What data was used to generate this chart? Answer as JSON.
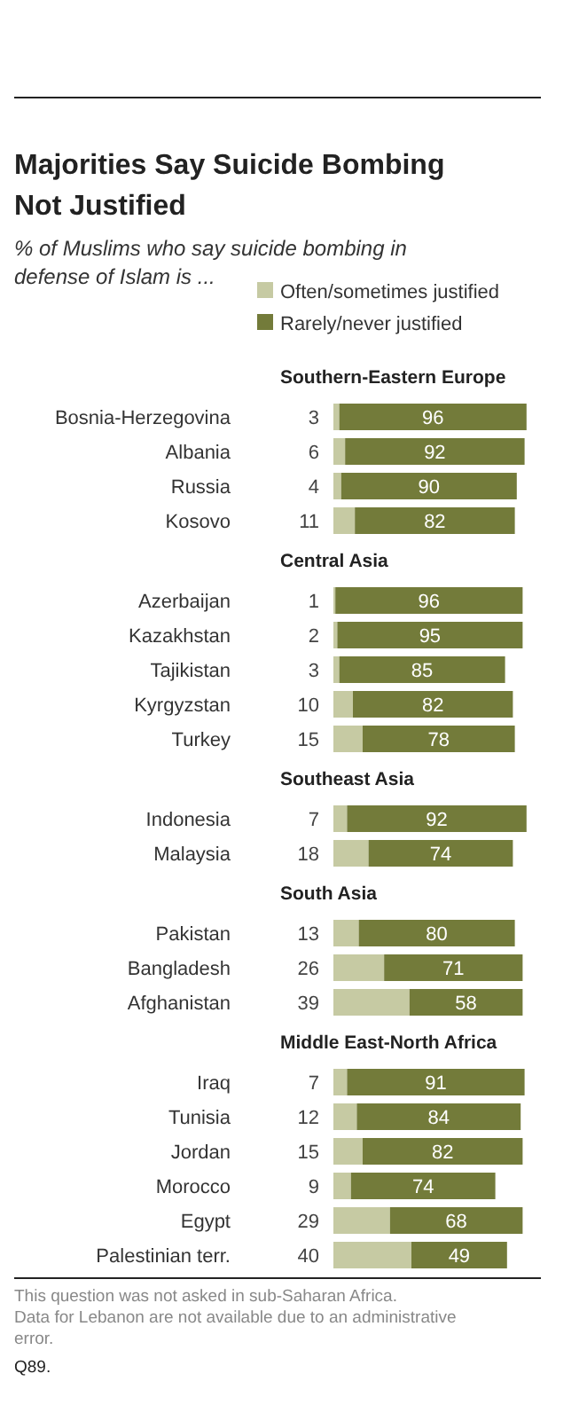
{
  "chart_data": [
    {
      "type": "other",
      "title": "Majorities Say Suicide Bombing Not Justified",
      "subtitle": "% of Muslims who say suicide bombing in defense of Islam is ..."
    },
    {
      "type": "bar",
      "orientation": "horizontal",
      "stacked": true,
      "title": "Southern-Eastern Europe",
      "legend": "top",
      "data_labels": true,
      "categories": [
        "Bosnia-Herzegovina",
        "Albania",
        "Russia",
        "Kosovo"
      ],
      "series": [
        {
          "name": "Often/sometimes justified",
          "color": "#c6caa3",
          "values": [
            3,
            6,
            4,
            11
          ]
        },
        {
          "name": "Rarely/never justified",
          "color": "#737b3a",
          "values": [
            96,
            92,
            90,
            82
          ]
        }
      ]
    },
    {
      "type": "bar",
      "orientation": "horizontal",
      "stacked": true,
      "title": "Central Asia",
      "data_labels": true,
      "categories": [
        "Azerbaijan",
        "Kazakhstan",
        "Tajikistan",
        "Kyrgyzstan",
        "Turkey"
      ],
      "series": [
        {
          "color": "#c6caa3",
          "values": [
            1,
            2,
            3,
            10,
            15
          ]
        },
        {
          "color": "#737b3a",
          "values": [
            96,
            95,
            85,
            82,
            78
          ]
        }
      ]
    },
    {
      "type": "bar",
      "orientation": "horizontal",
      "stacked": true,
      "title": "Southeast Asia",
      "data_labels": true,
      "categories": [
        "Indonesia",
        "Malaysia"
      ],
      "series": [
        {
          "color": "#c6caa3",
          "values": [
            7,
            18
          ]
        },
        {
          "color": "#737b3a",
          "values": [
            92,
            74
          ]
        }
      ]
    },
    {
      "type": "bar",
      "orientation": "horizontal",
      "stacked": true,
      "title": "South Asia",
      "data_labels": true,
      "categories": [
        "Pakistan",
        "Bangladesh",
        "Afghanistan"
      ],
      "series": [
        {
          "color": "#c6caa3",
          "values": [
            13,
            26,
            39
          ]
        },
        {
          "color": "#737b3a",
          "values": [
            80,
            71,
            58
          ]
        }
      ]
    },
    {
      "type": "bar",
      "orientation": "horizontal",
      "stacked": true,
      "title": "Middle East-North Africa",
      "data_labels": true,
      "categories": [
        "Iraq",
        "Tunisia",
        "Jordan",
        "Morocco",
        "Egypt",
        "Palestinian terr."
      ],
      "series": [
        {
          "color": "#c6caa3",
          "values": [
            7,
            12,
            15,
            9,
            29,
            40
          ]
        },
        {
          "color": "#737b3a",
          "values": [
            91,
            84,
            82,
            74,
            68,
            49
          ]
        }
      ],
      "annotations": [
        "This question was not asked in sub-Saharan Africa.",
        "Data for Lebanon are not available due to an administrative error.",
        "Q89."
      ]
    }
  ]
}
